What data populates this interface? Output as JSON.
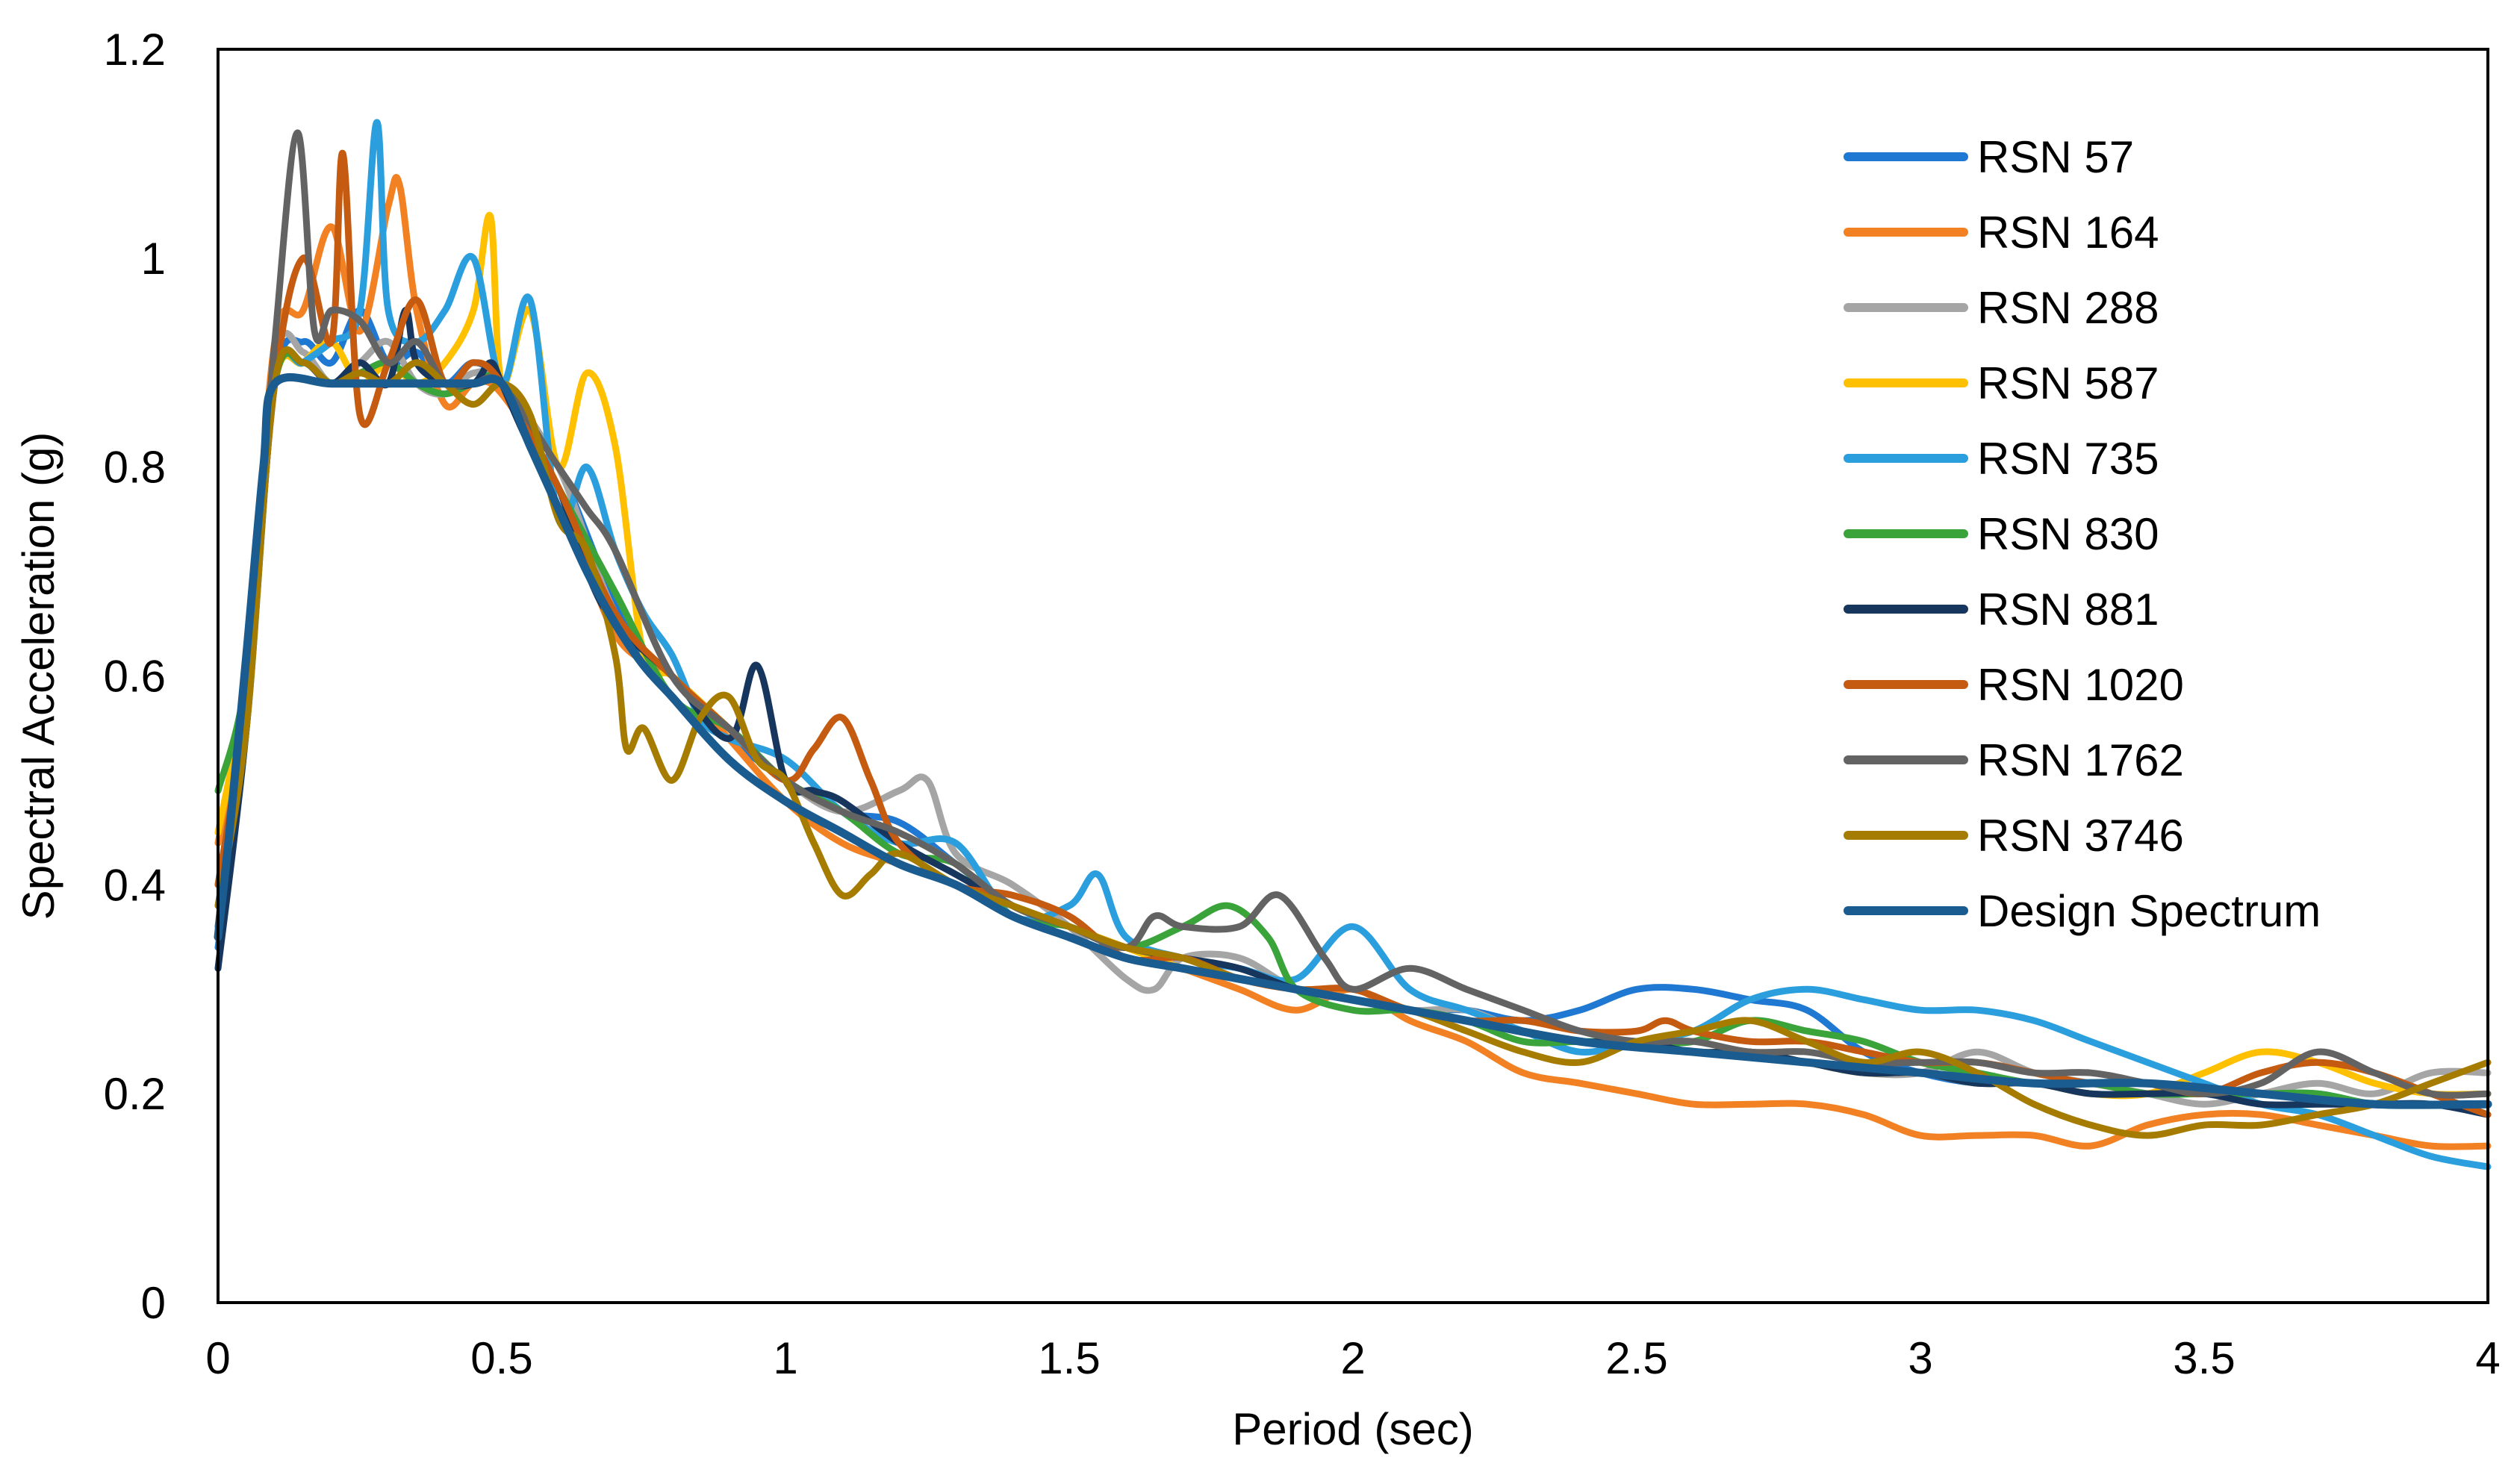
{
  "chart_data": {
    "type": "line",
    "title": "",
    "xlabel": "Period (sec)",
    "ylabel": "Spectral Acceleration (g)",
    "xlim": [
      0,
      4
    ],
    "ylim": [
      0,
      1.2
    ],
    "xticks": [
      0,
      0.5,
      1,
      1.5,
      2,
      2.5,
      3,
      3.5,
      4
    ],
    "xtick_labels": [
      "0",
      "0.5",
      "1",
      "1.5",
      "2",
      "2.5",
      "3",
      "3.5",
      "4"
    ],
    "yticks": [
      0,
      0.2,
      0.4,
      0.6,
      0.8,
      1,
      1.2
    ],
    "ytick_labels": [
      "0",
      "0.2",
      "0.4",
      "0.6",
      "0.8",
      "1",
      "1.2"
    ],
    "grid": false,
    "legend_position": "top-right",
    "series": [
      {
        "name": "RSN 57",
        "label": "RSN 57",
        "color": "#1f78d1",
        "x": [
          0,
          0.05,
          0.1,
          0.15,
          0.2,
          0.25,
          0.3,
          0.35,
          0.4,
          0.45,
          0.5,
          0.6,
          0.7,
          0.8,
          0.9,
          1.0,
          1.1,
          1.2,
          1.3,
          1.4,
          1.5,
          1.6,
          1.7,
          1.8,
          1.9,
          2.0,
          2.1,
          2.2,
          2.3,
          2.4,
          2.5,
          2.6,
          2.7,
          2.8,
          2.9,
          3.0,
          3.1,
          3.2,
          3.3,
          3.4,
          3.5,
          3.6,
          3.7,
          3.8,
          3.9,
          4.0
        ],
        "y": [
          0.34,
          0.55,
          0.88,
          0.92,
          0.9,
          0.95,
          0.9,
          0.91,
          0.88,
          0.9,
          0.88,
          0.8,
          0.67,
          0.58,
          0.54,
          0.5,
          0.47,
          0.46,
          0.42,
          0.38,
          0.36,
          0.34,
          0.33,
          0.31,
          0.3,
          0.29,
          0.28,
          0.28,
          0.27,
          0.28,
          0.3,
          0.3,
          0.29,
          0.28,
          0.24,
          0.22,
          0.21,
          0.21,
          0.2,
          0.2,
          0.2,
          0.2,
          0.2,
          0.19,
          0.19,
          0.19
        ]
      },
      {
        "name": "RSN 164",
        "label": "RSN 164",
        "color": "#f28124",
        "x": [
          0,
          0.05,
          0.1,
          0.15,
          0.2,
          0.25,
          0.3,
          0.32,
          0.35,
          0.4,
          0.45,
          0.5,
          0.6,
          0.7,
          0.8,
          0.9,
          1.0,
          1.1,
          1.2,
          1.3,
          1.4,
          1.5,
          1.6,
          1.7,
          1.8,
          1.9,
          2.0,
          2.1,
          2.2,
          2.3,
          2.4,
          2.5,
          2.6,
          2.7,
          2.8,
          2.9,
          3.0,
          3.1,
          3.2,
          3.3,
          3.4,
          3.5,
          3.6,
          3.7,
          3.8,
          3.9,
          4.0
        ],
        "y": [
          0.44,
          0.6,
          0.92,
          0.95,
          1.03,
          0.93,
          1.05,
          1.07,
          0.95,
          0.86,
          0.88,
          0.87,
          0.78,
          0.64,
          0.6,
          0.54,
          0.48,
          0.44,
          0.42,
          0.4,
          0.38,
          0.36,
          0.34,
          0.32,
          0.3,
          0.28,
          0.3,
          0.27,
          0.25,
          0.22,
          0.21,
          0.2,
          0.19,
          0.19,
          0.19,
          0.18,
          0.16,
          0.16,
          0.16,
          0.15,
          0.17,
          0.18,
          0.18,
          0.17,
          0.16,
          0.15,
          0.15
        ]
      },
      {
        "name": "RSN 288",
        "label": "RSN 288",
        "color": "#a5a5a5",
        "x": [
          0,
          0.05,
          0.1,
          0.15,
          0.2,
          0.25,
          0.3,
          0.35,
          0.4,
          0.45,
          0.5,
          0.6,
          0.7,
          0.8,
          0.9,
          1.0,
          1.1,
          1.2,
          1.25,
          1.3,
          1.4,
          1.5,
          1.6,
          1.65,
          1.7,
          1.8,
          1.9,
          2.0,
          2.1,
          2.2,
          2.3,
          2.4,
          2.5,
          2.6,
          2.7,
          2.8,
          2.9,
          3.0,
          3.1,
          3.2,
          3.3,
          3.4,
          3.5,
          3.6,
          3.7,
          3.8,
          3.9,
          4.0
        ],
        "y": [
          0.4,
          0.58,
          0.9,
          0.91,
          0.88,
          0.9,
          0.92,
          0.88,
          0.87,
          0.89,
          0.88,
          0.8,
          0.66,
          0.6,
          0.55,
          0.5,
          0.47,
          0.49,
          0.5,
          0.43,
          0.4,
          0.36,
          0.31,
          0.3,
          0.33,
          0.33,
          0.3,
          0.29,
          0.28,
          0.28,
          0.26,
          0.25,
          0.25,
          0.24,
          0.24,
          0.23,
          0.22,
          0.22,
          0.24,
          0.22,
          0.21,
          0.2,
          0.19,
          0.2,
          0.21,
          0.2,
          0.22,
          0.22
        ]
      },
      {
        "name": "RSN 587",
        "label": "RSN 587",
        "color": "#ffc000",
        "x": [
          0,
          0.05,
          0.1,
          0.15,
          0.2,
          0.25,
          0.3,
          0.35,
          0.4,
          0.45,
          0.48,
          0.5,
          0.55,
          0.6,
          0.65,
          0.7,
          0.75,
          0.8,
          0.9,
          1.0,
          1.1,
          1.2,
          1.3,
          1.4,
          1.5,
          1.6,
          1.7,
          1.8,
          1.9,
          2.0,
          2.1,
          2.2,
          2.3,
          2.4,
          2.5,
          2.6,
          2.7,
          2.8,
          2.9,
          3.0,
          3.1,
          3.2,
          3.3,
          3.4,
          3.5,
          3.6,
          3.7,
          3.8,
          3.9,
          4.0
        ],
        "y": [
          0.45,
          0.6,
          0.88,
          0.9,
          0.92,
          0.88,
          0.9,
          0.88,
          0.9,
          0.95,
          1.04,
          0.88,
          0.95,
          0.8,
          0.89,
          0.82,
          0.62,
          0.6,
          0.55,
          0.5,
          0.47,
          0.45,
          0.42,
          0.38,
          0.36,
          0.34,
          0.32,
          0.31,
          0.3,
          0.29,
          0.28,
          0.27,
          0.26,
          0.25,
          0.25,
          0.24,
          0.24,
          0.23,
          0.22,
          0.22,
          0.21,
          0.21,
          0.2,
          0.2,
          0.22,
          0.24,
          0.23,
          0.21,
          0.2,
          0.2
        ]
      },
      {
        "name": "RSN 735",
        "label": "RSN 735",
        "color": "#2b9fdd",
        "x": [
          0,
          0.05,
          0.1,
          0.15,
          0.2,
          0.25,
          0.28,
          0.3,
          0.35,
          0.4,
          0.45,
          0.5,
          0.55,
          0.6,
          0.65,
          0.7,
          0.75,
          0.8,
          0.85,
          0.9,
          1.0,
          1.1,
          1.2,
          1.3,
          1.4,
          1.5,
          1.55,
          1.6,
          1.7,
          1.8,
          1.9,
          2.0,
          2.1,
          2.2,
          2.3,
          2.4,
          2.5,
          2.6,
          2.7,
          2.8,
          2.9,
          3.0,
          3.1,
          3.2,
          3.3,
          3.4,
          3.5,
          3.6,
          3.7,
          3.8,
          3.9,
          4.0
        ],
        "y": [
          0.38,
          0.55,
          0.88,
          0.9,
          0.92,
          0.95,
          1.13,
          0.95,
          0.92,
          0.95,
          1.0,
          0.88,
          0.96,
          0.75,
          0.8,
          0.72,
          0.66,
          0.62,
          0.56,
          0.54,
          0.52,
          0.47,
          0.44,
          0.44,
          0.37,
          0.38,
          0.41,
          0.35,
          0.33,
          0.32,
          0.31,
          0.36,
          0.3,
          0.28,
          0.26,
          0.24,
          0.25,
          0.26,
          0.29,
          0.3,
          0.29,
          0.28,
          0.28,
          0.27,
          0.25,
          0.23,
          0.21,
          0.19,
          0.18,
          0.16,
          0.14,
          0.13
        ]
      },
      {
        "name": "RSN 830",
        "label": "RSN 830",
        "color": "#3aa33a",
        "x": [
          0,
          0.05,
          0.1,
          0.15,
          0.2,
          0.25,
          0.3,
          0.35,
          0.4,
          0.45,
          0.5,
          0.6,
          0.7,
          0.8,
          0.9,
          1.0,
          1.1,
          1.2,
          1.3,
          1.4,
          1.5,
          1.6,
          1.7,
          1.78,
          1.85,
          1.9,
          2.0,
          2.1,
          2.2,
          2.3,
          2.4,
          2.5,
          2.6,
          2.7,
          2.8,
          2.9,
          3.0,
          3.1,
          3.2,
          3.3,
          3.4,
          3.5,
          3.6,
          3.7,
          3.8,
          3.9,
          4.0
        ],
        "y": [
          0.49,
          0.6,
          0.88,
          0.9,
          0.88,
          0.89,
          0.9,
          0.88,
          0.87,
          0.88,
          0.88,
          0.78,
          0.68,
          0.58,
          0.55,
          0.5,
          0.47,
          0.43,
          0.42,
          0.37,
          0.36,
          0.34,
          0.36,
          0.38,
          0.35,
          0.3,
          0.28,
          0.28,
          0.27,
          0.25,
          0.25,
          0.25,
          0.25,
          0.27,
          0.26,
          0.25,
          0.23,
          0.22,
          0.21,
          0.21,
          0.2,
          0.2,
          0.2,
          0.2,
          0.19,
          0.19,
          0.19
        ]
      },
      {
        "name": "RSN 881",
        "label": "RSN 881",
        "color": "#17365d",
        "x": [
          0,
          0.05,
          0.1,
          0.15,
          0.2,
          0.25,
          0.3,
          0.33,
          0.35,
          0.4,
          0.45,
          0.48,
          0.5,
          0.55,
          0.6,
          0.65,
          0.7,
          0.8,
          0.9,
          0.95,
          1.0,
          1.05,
          1.1,
          1.2,
          1.3,
          1.4,
          1.5,
          1.6,
          1.7,
          1.8,
          1.9,
          2.0,
          2.1,
          2.2,
          2.3,
          2.4,
          2.5,
          2.6,
          2.7,
          2.8,
          2.9,
          3.0,
          3.1,
          3.2,
          3.3,
          3.4,
          3.5,
          3.6,
          3.7,
          3.8,
          3.9,
          4.0
        ],
        "y": [
          0.32,
          0.55,
          0.88,
          0.9,
          0.88,
          0.9,
          0.88,
          0.95,
          0.9,
          0.88,
          0.88,
          0.9,
          0.88,
          0.82,
          0.78,
          0.7,
          0.65,
          0.6,
          0.54,
          0.61,
          0.5,
          0.49,
          0.48,
          0.44,
          0.41,
          0.38,
          0.36,
          0.34,
          0.33,
          0.32,
          0.3,
          0.29,
          0.28,
          0.27,
          0.26,
          0.25,
          0.25,
          0.24,
          0.24,
          0.23,
          0.22,
          0.22,
          0.21,
          0.21,
          0.2,
          0.2,
          0.2,
          0.19,
          0.19,
          0.19,
          0.19,
          0.18
        ]
      },
      {
        "name": "RSN 1020",
        "label": "RSN 1020",
        "color": "#c55a11",
        "x": [
          0,
          0.05,
          0.1,
          0.15,
          0.2,
          0.22,
          0.25,
          0.3,
          0.35,
          0.4,
          0.45,
          0.5,
          0.6,
          0.7,
          0.8,
          0.9,
          1.0,
          1.05,
          1.1,
          1.15,
          1.2,
          1.3,
          1.4,
          1.5,
          1.6,
          1.7,
          1.8,
          1.9,
          2.0,
          2.1,
          2.2,
          2.3,
          2.4,
          2.5,
          2.55,
          2.6,
          2.7,
          2.8,
          2.9,
          3.0,
          3.1,
          3.2,
          3.3,
          3.4,
          3.5,
          3.6,
          3.7,
          3.8,
          3.9,
          4.0
        ],
        "y": [
          0.4,
          0.58,
          0.88,
          1.0,
          0.92,
          1.1,
          0.85,
          0.9,
          0.96,
          0.88,
          0.9,
          0.88,
          0.78,
          0.66,
          0.6,
          0.55,
          0.5,
          0.53,
          0.56,
          0.5,
          0.44,
          0.4,
          0.39,
          0.37,
          0.33,
          0.33,
          0.31,
          0.3,
          0.3,
          0.28,
          0.27,
          0.27,
          0.26,
          0.26,
          0.27,
          0.26,
          0.25,
          0.25,
          0.24,
          0.23,
          0.23,
          0.22,
          0.21,
          0.21,
          0.2,
          0.22,
          0.23,
          0.22,
          0.2,
          0.18
        ]
      },
      {
        "name": "RSN 1762",
        "label": "RSN 1762",
        "color": "#636363",
        "x": [
          0,
          0.05,
          0.1,
          0.14,
          0.17,
          0.2,
          0.25,
          0.3,
          0.35,
          0.4,
          0.45,
          0.5,
          0.6,
          0.65,
          0.7,
          0.8,
          0.9,
          1.0,
          1.1,
          1.2,
          1.3,
          1.4,
          1.5,
          1.6,
          1.65,
          1.7,
          1.8,
          1.87,
          1.95,
          2.0,
          2.1,
          2.2,
          2.3,
          2.4,
          2.5,
          2.6,
          2.7,
          2.8,
          2.9,
          3.0,
          3.1,
          3.2,
          3.3,
          3.4,
          3.5,
          3.6,
          3.7,
          3.8,
          3.9,
          4.0
        ],
        "y": [
          0.36,
          0.6,
          0.92,
          1.12,
          0.93,
          0.95,
          0.94,
          0.9,
          0.92,
          0.88,
          0.88,
          0.88,
          0.8,
          0.76,
          0.72,
          0.6,
          0.55,
          0.5,
          0.47,
          0.45,
          0.42,
          0.38,
          0.36,
          0.34,
          0.37,
          0.36,
          0.36,
          0.39,
          0.33,
          0.3,
          0.32,
          0.3,
          0.28,
          0.26,
          0.25,
          0.25,
          0.24,
          0.24,
          0.23,
          0.23,
          0.23,
          0.22,
          0.22,
          0.21,
          0.2,
          0.21,
          0.24,
          0.22,
          0.2,
          0.2
        ]
      },
      {
        "name": "RSN 3746",
        "label": "RSN 3746",
        "color": "#a57c00",
        "x": [
          0,
          0.05,
          0.1,
          0.15,
          0.2,
          0.25,
          0.3,
          0.35,
          0.4,
          0.45,
          0.5,
          0.55,
          0.6,
          0.65,
          0.7,
          0.72,
          0.75,
          0.8,
          0.85,
          0.9,
          0.95,
          1.0,
          1.05,
          1.1,
          1.15,
          1.2,
          1.3,
          1.4,
          1.5,
          1.6,
          1.7,
          1.8,
          1.9,
          2.0,
          2.1,
          2.2,
          2.3,
          2.4,
          2.5,
          2.6,
          2.7,
          2.8,
          2.9,
          3.0,
          3.1,
          3.2,
          3.3,
          3.4,
          3.5,
          3.6,
          3.7,
          3.8,
          3.9,
          4.0
        ],
        "y": [
          0.38,
          0.55,
          0.88,
          0.9,
          0.88,
          0.89,
          0.88,
          0.9,
          0.88,
          0.86,
          0.88,
          0.85,
          0.75,
          0.72,
          0.62,
          0.53,
          0.55,
          0.5,
          0.56,
          0.58,
          0.52,
          0.5,
          0.44,
          0.39,
          0.41,
          0.43,
          0.4,
          0.38,
          0.36,
          0.34,
          0.33,
          0.31,
          0.3,
          0.29,
          0.28,
          0.26,
          0.24,
          0.23,
          0.25,
          0.26,
          0.27,
          0.25,
          0.23,
          0.24,
          0.22,
          0.19,
          0.17,
          0.16,
          0.17,
          0.17,
          0.18,
          0.19,
          0.21,
          0.23
        ]
      },
      {
        "name": "Design Spectrum",
        "label": "Design Spectrum",
        "color": "#1a5c8f",
        "x": [
          0,
          0.02,
          0.05,
          0.08,
          0.1,
          0.2,
          0.3,
          0.4,
          0.45,
          0.5,
          0.55,
          0.6,
          0.65,
          0.7,
          0.75,
          0.8,
          0.9,
          1.0,
          1.1,
          1.2,
          1.3,
          1.4,
          1.5,
          1.6,
          1.7,
          1.8,
          1.9,
          2.0,
          2.2,
          2.4,
          2.6,
          2.8,
          3.0,
          3.2,
          3.4,
          3.6,
          3.8,
          4.0
        ],
        "y": [
          0.35,
          0.45,
          0.62,
          0.8,
          0.88,
          0.88,
          0.88,
          0.88,
          0.88,
          0.88,
          0.82,
          0.76,
          0.7,
          0.65,
          0.61,
          0.58,
          0.52,
          0.48,
          0.45,
          0.42,
          0.4,
          0.37,
          0.35,
          0.33,
          0.32,
          0.31,
          0.3,
          0.29,
          0.27,
          0.25,
          0.24,
          0.23,
          0.22,
          0.21,
          0.21,
          0.2,
          0.19,
          0.19
        ]
      }
    ]
  }
}
